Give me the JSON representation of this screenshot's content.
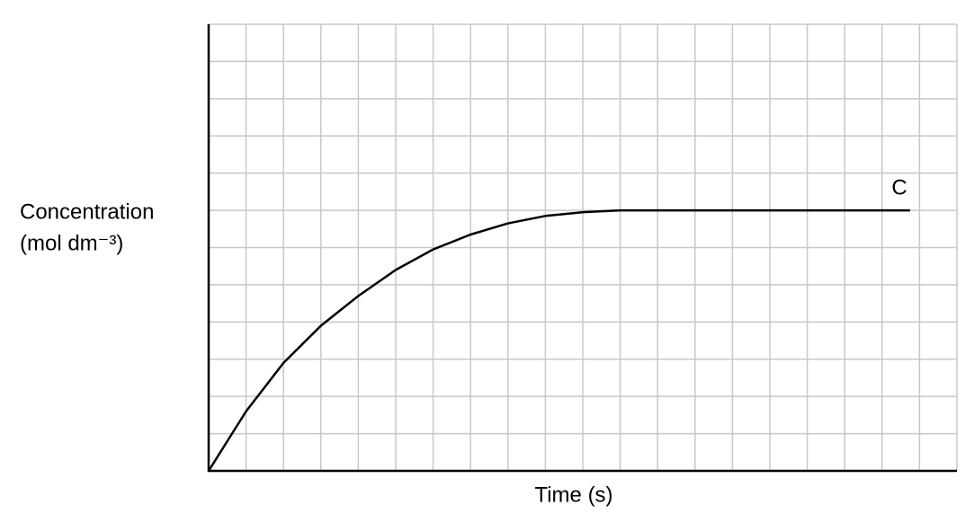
{
  "chart_data": {
    "type": "line",
    "x_label": "Time (s)",
    "y_label": [
      "Concentration",
      "(mol dm⁻³)"
    ],
    "xlim": [
      0,
      20
    ],
    "ylim": [
      0,
      12
    ],
    "grid": true,
    "series": [
      {
        "name": "C",
        "color": "#000000",
        "x": [
          0,
          1,
          2,
          3,
          4,
          5,
          6,
          7,
          8,
          9,
          10,
          11,
          12,
          18.75
        ],
        "values": [
          0,
          1.6,
          2.9,
          3.9,
          4.7,
          5.4,
          5.95,
          6.35,
          6.65,
          6.85,
          6.95,
          7,
          7,
          7
        ]
      }
    ]
  }
}
